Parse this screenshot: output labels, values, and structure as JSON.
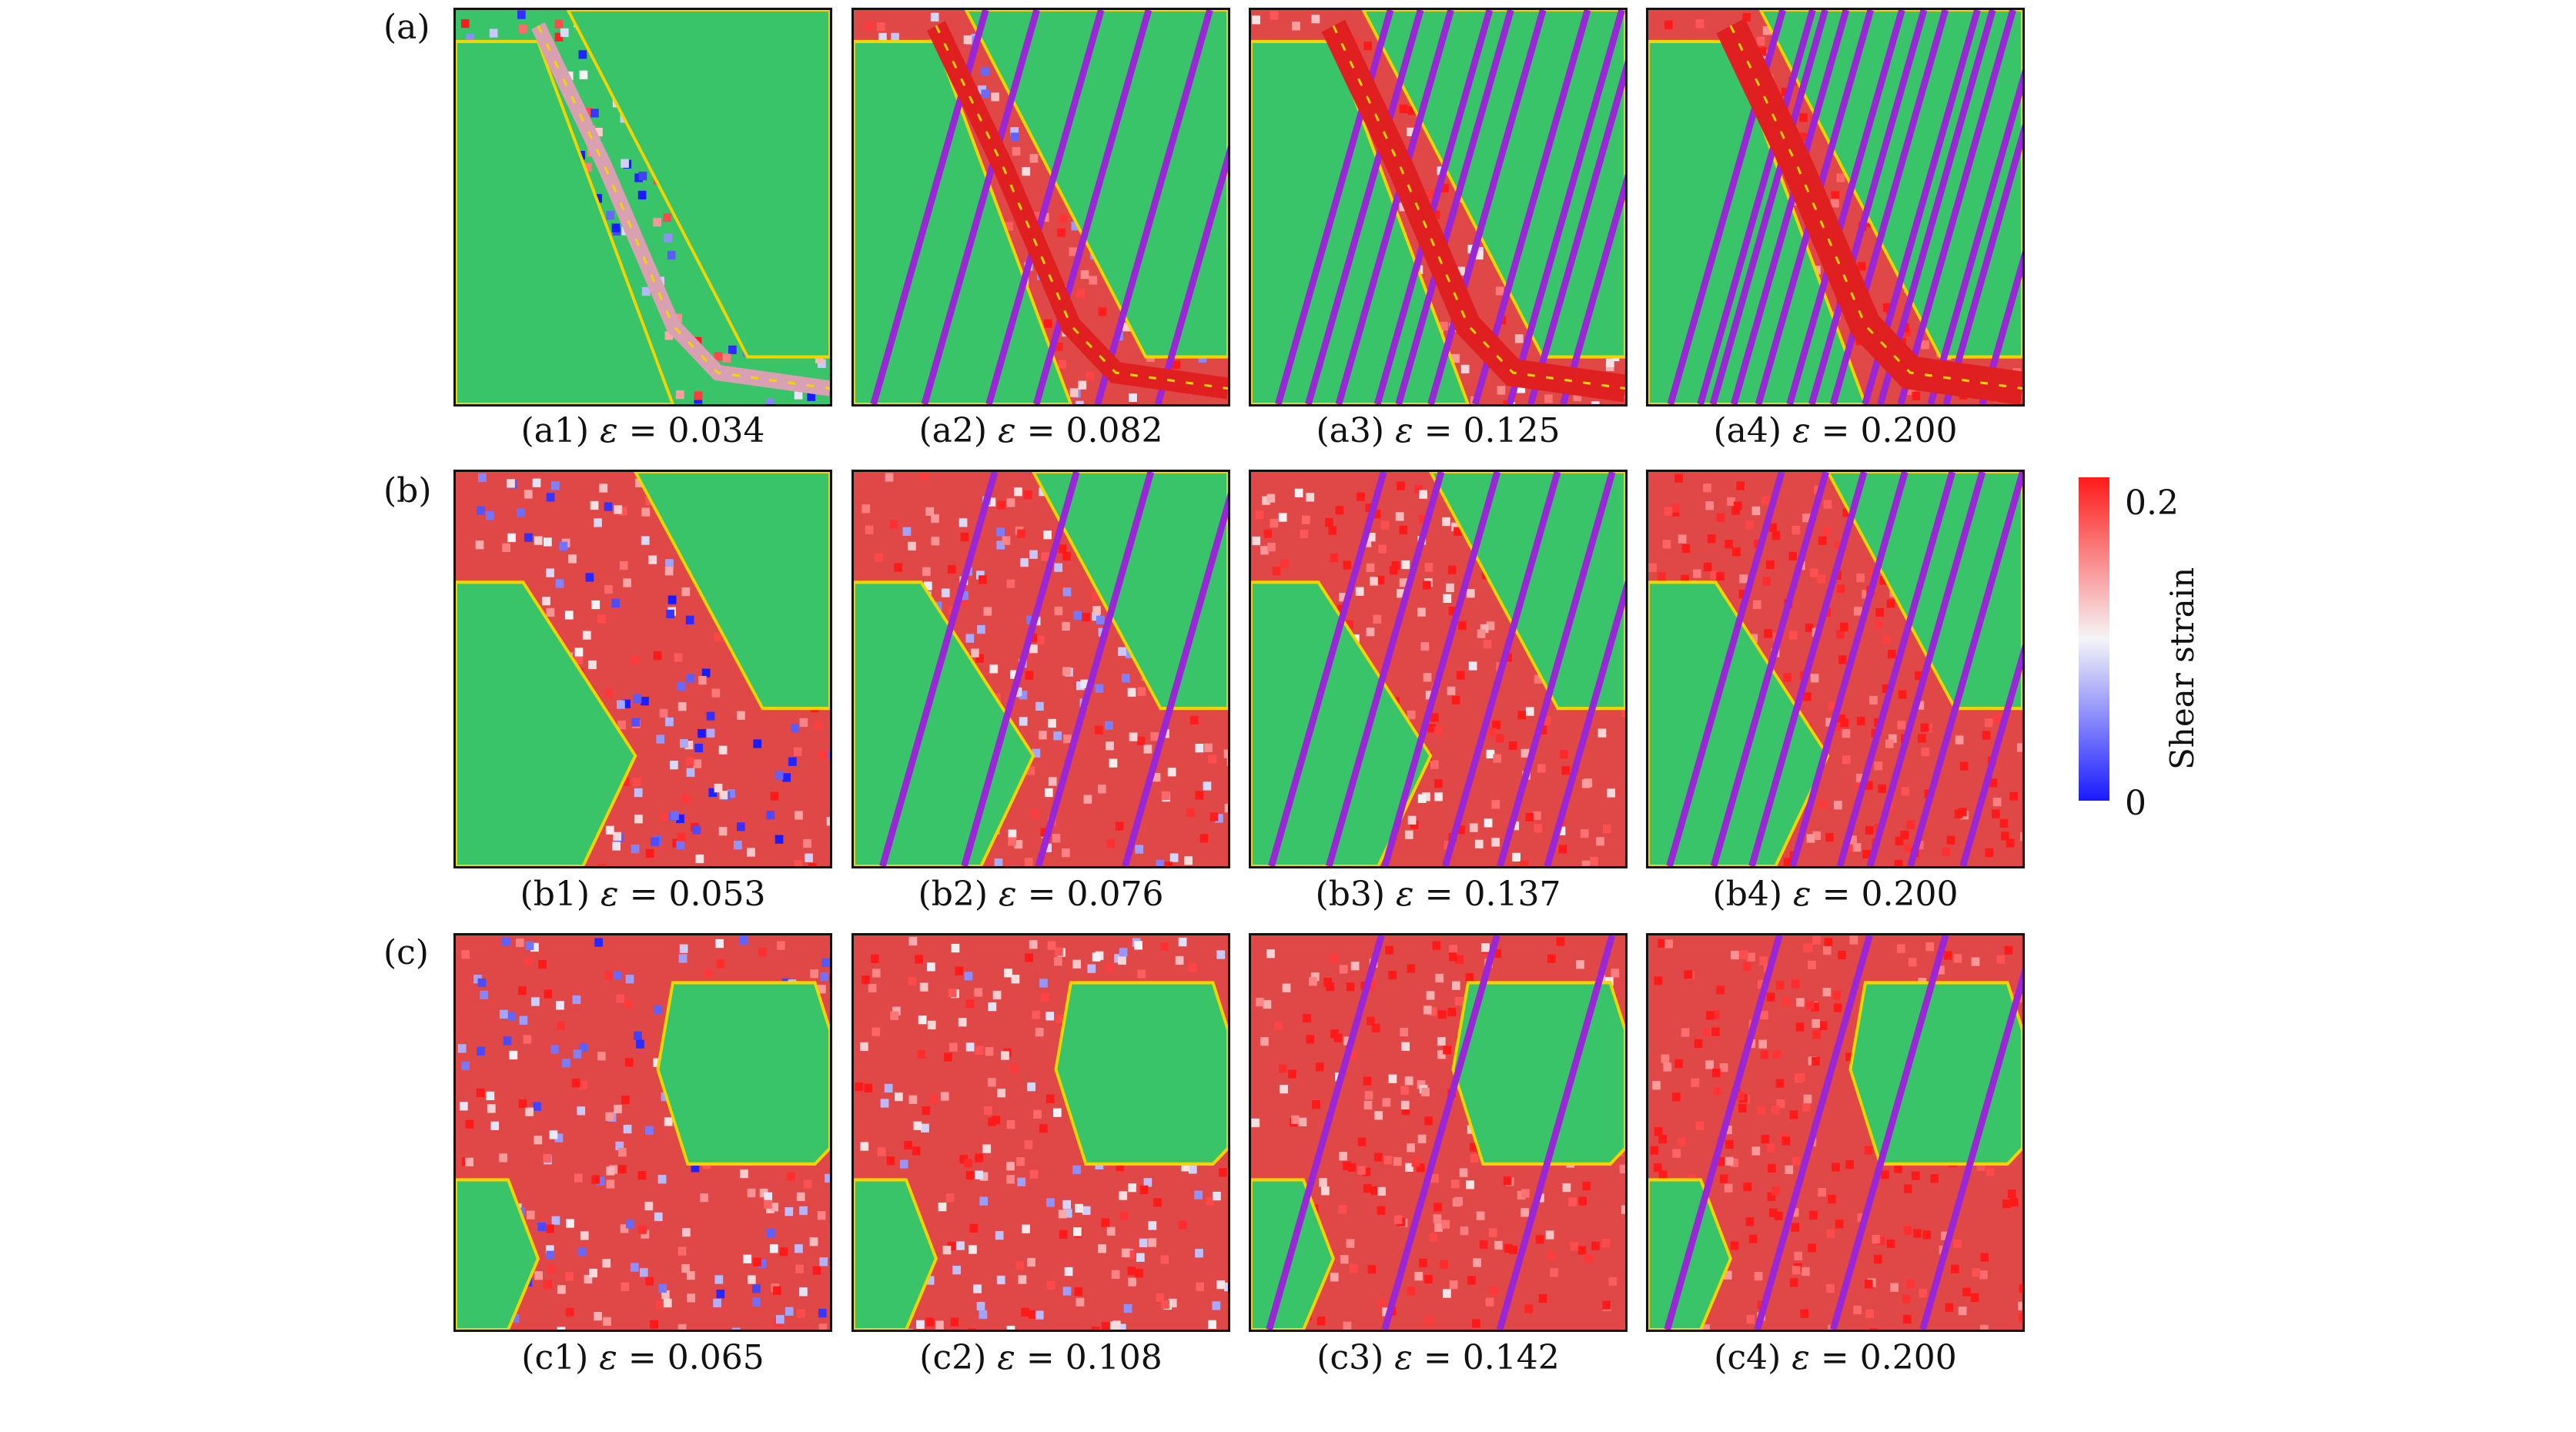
{
  "rows": [
    {
      "label": "(a)",
      "panels": [
        {
          "id": "a1",
          "caption_prefix": "(a1)",
          "eps_symbol": "ε",
          "eq": " = ",
          "strain_value": "0.034",
          "plastic_fraction": 0.25,
          "twin_bands": 0
        },
        {
          "id": "a2",
          "caption_prefix": "(a2)",
          "eps_symbol": "ε",
          "eq": " = ",
          "strain_value": "0.082",
          "plastic_fraction": 0.25,
          "twin_bands": 6
        },
        {
          "id": "a3",
          "caption_prefix": "(a3)",
          "eps_symbol": "ε",
          "eq": " = ",
          "strain_value": "0.125",
          "plastic_fraction": 0.25,
          "twin_bands": 10
        },
        {
          "id": "a4",
          "caption_prefix": "(a4)",
          "eps_symbol": "ε",
          "eq": " = ",
          "strain_value": "0.200",
          "plastic_fraction": 0.25,
          "twin_bands": 14
        }
      ]
    },
    {
      "label": "(b)",
      "panels": [
        {
          "id": "b1",
          "caption_prefix": "(b1)",
          "eps_symbol": "ε",
          "eq": " = ",
          "strain_value": "0.053",
          "plastic_fraction": 0.55,
          "twin_bands": 0
        },
        {
          "id": "b2",
          "caption_prefix": "(b2)",
          "eps_symbol": "ε",
          "eq": " = ",
          "strain_value": "0.076",
          "plastic_fraction": 0.55,
          "twin_bands": 4
        },
        {
          "id": "b3",
          "caption_prefix": "(b3)",
          "eps_symbol": "ε",
          "eq": " = ",
          "strain_value": "0.137",
          "plastic_fraction": 0.55,
          "twin_bands": 6
        },
        {
          "id": "b4",
          "caption_prefix": "(b4)",
          "eps_symbol": "ε",
          "eq": " = ",
          "strain_value": "0.200",
          "plastic_fraction": 0.55,
          "twin_bands": 8
        }
      ]
    },
    {
      "label": "(c)",
      "panels": [
        {
          "id": "c1",
          "caption_prefix": "(c1)",
          "eps_symbol": "ε",
          "eq": " = ",
          "strain_value": "0.065",
          "plastic_fraction": 0.8,
          "twin_bands": 0
        },
        {
          "id": "c2",
          "caption_prefix": "(c2)",
          "eps_symbol": "ε",
          "eq": " = ",
          "strain_value": "0.108",
          "plastic_fraction": 0.8,
          "twin_bands": 0
        },
        {
          "id": "c3",
          "caption_prefix": "(c3)",
          "eps_symbol": "ε",
          "eq": " = ",
          "strain_value": "0.142",
          "plastic_fraction": 0.8,
          "twin_bands": 3
        },
        {
          "id": "c4",
          "caption_prefix": "(c4)",
          "eps_symbol": "ε",
          "eq": " = ",
          "strain_value": "0.200",
          "plastic_fraction": 0.8,
          "twin_bands": 4
        }
      ]
    }
  ],
  "colorbar": {
    "title": "Shear strain",
    "max_label": "0.2",
    "min_label": "0",
    "max_color": "#ff1a1a",
    "mid_color": "#f5f5f7",
    "min_color": "#1a1aff"
  },
  "phase_colors": {
    "crystal": "#39c46a",
    "twin": "#9a27d6",
    "boundary": "#f2d500"
  }
}
